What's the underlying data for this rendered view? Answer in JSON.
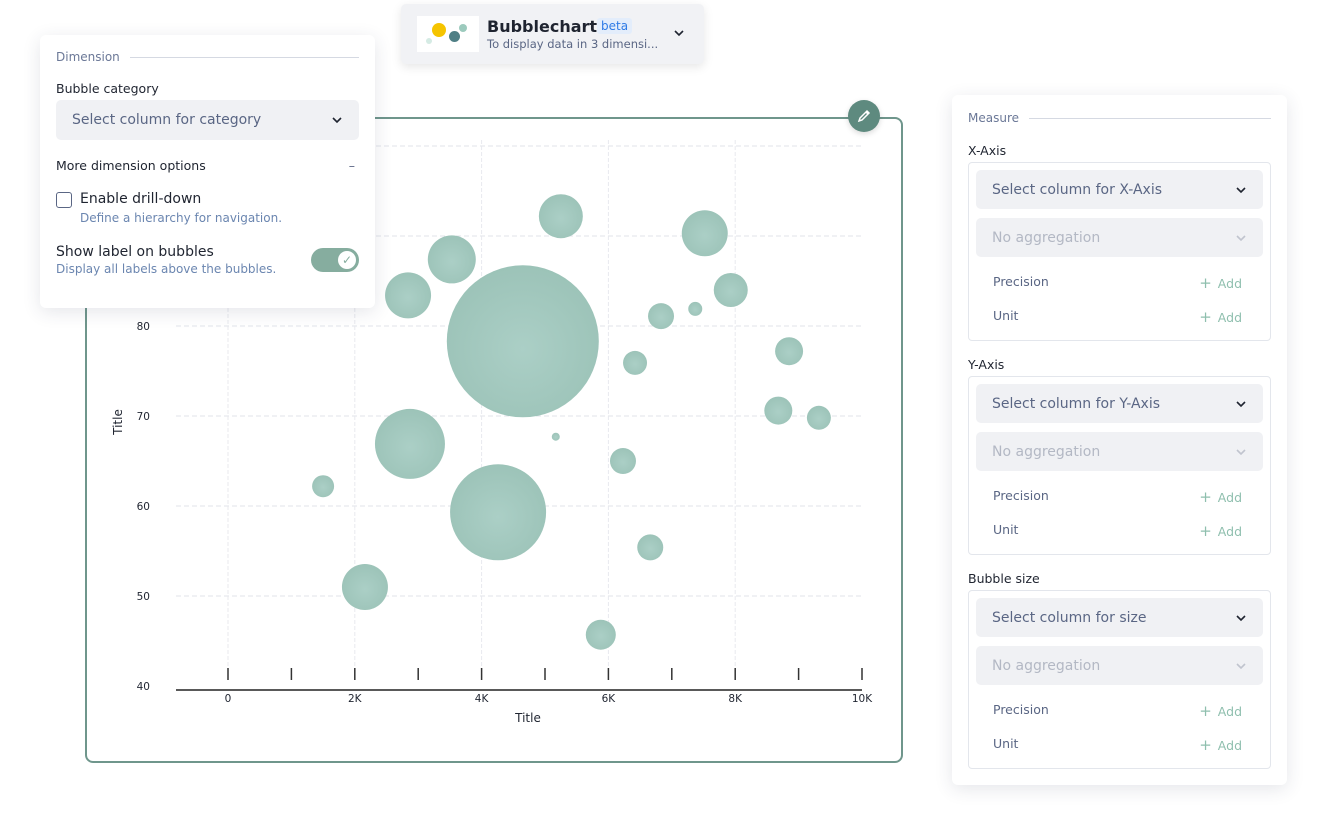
{
  "chart_picker": {
    "title": "Bubblechart",
    "badge": "beta",
    "description": "To display data in 3 dimensi...",
    "icon": "bubble-chart-thumbnail"
  },
  "dimension": {
    "section": "Dimension",
    "category_label": "Bubble category",
    "category_placeholder": "Select column for category",
    "more_options": "More dimension options",
    "drilldown_label": "Enable drill-down",
    "drilldown_desc": "Define a hierarchy for navigation.",
    "drilldown_checked": false,
    "show_label": "Show label on bubbles",
    "show_label_desc": "Display all labels above the bubbles.",
    "show_label_on": true
  },
  "measure": {
    "section": "Measure",
    "groups": [
      {
        "label": "X-Axis",
        "placeholder": "Select column for X-Axis",
        "aggregation": "No aggregation",
        "precision": "Precision",
        "unit": "Unit",
        "add": "Add"
      },
      {
        "label": "Y-Axis",
        "placeholder": "Select column for Y-Axis",
        "aggregation": "No aggregation",
        "precision": "Precision",
        "unit": "Unit",
        "add": "Add"
      },
      {
        "label": "Bubble size",
        "placeholder": "Select column for size",
        "aggregation": "No aggregation",
        "precision": "Precision",
        "unit": "Unit",
        "add": "Add"
      }
    ]
  },
  "colors": {
    "accent": "#5e8a7f",
    "bubble": "#9fc5bb",
    "frame": "#6f968c"
  },
  "chart_data": {
    "type": "scatter",
    "xlabel": "Title",
    "ylabel": "Title",
    "xlim": [
      0,
      10000
    ],
    "ylim": [
      40,
      100
    ],
    "xticks": [
      "0",
      "2K",
      "4K",
      "6K",
      "8K",
      "10K"
    ],
    "yticks": [
      "40",
      "50",
      "60",
      "70",
      "80"
    ],
    "grid": true,
    "points": [
      {
        "x": 5250,
        "y": 92.2,
        "size": 484
      },
      {
        "x": 7520,
        "y": 90.3,
        "size": 529
      },
      {
        "x": 3530,
        "y": 87.4,
        "size": 576
      },
      {
        "x": 2840,
        "y": 83.4,
        "size": 529
      },
      {
        "x": 4650,
        "y": 78.3,
        "size": 5776
      },
      {
        "x": 6830,
        "y": 81.1,
        "size": 169
      },
      {
        "x": 7370,
        "y": 81.9,
        "size": 49
      },
      {
        "x": 7930,
        "y": 84.0,
        "size": 289
      },
      {
        "x": 6420,
        "y": 75.9,
        "size": 144
      },
      {
        "x": 8850,
        "y": 77.2,
        "size": 196
      },
      {
        "x": 8680,
        "y": 70.6,
        "size": 196
      },
      {
        "x": 9320,
        "y": 69.8,
        "size": 144
      },
      {
        "x": 5170,
        "y": 67.7,
        "size": 16
      },
      {
        "x": 2870,
        "y": 66.9,
        "size": 1225
      },
      {
        "x": 6230,
        "y": 65.0,
        "size": 169
      },
      {
        "x": 1500,
        "y": 62.2,
        "size": 121
      },
      {
        "x": 4260,
        "y": 59.3,
        "size": 2304
      },
      {
        "x": 6660,
        "y": 55.4,
        "size": 169
      },
      {
        "x": 2160,
        "y": 51.0,
        "size": 529
      },
      {
        "x": 5880,
        "y": 45.7,
        "size": 225
      }
    ]
  }
}
